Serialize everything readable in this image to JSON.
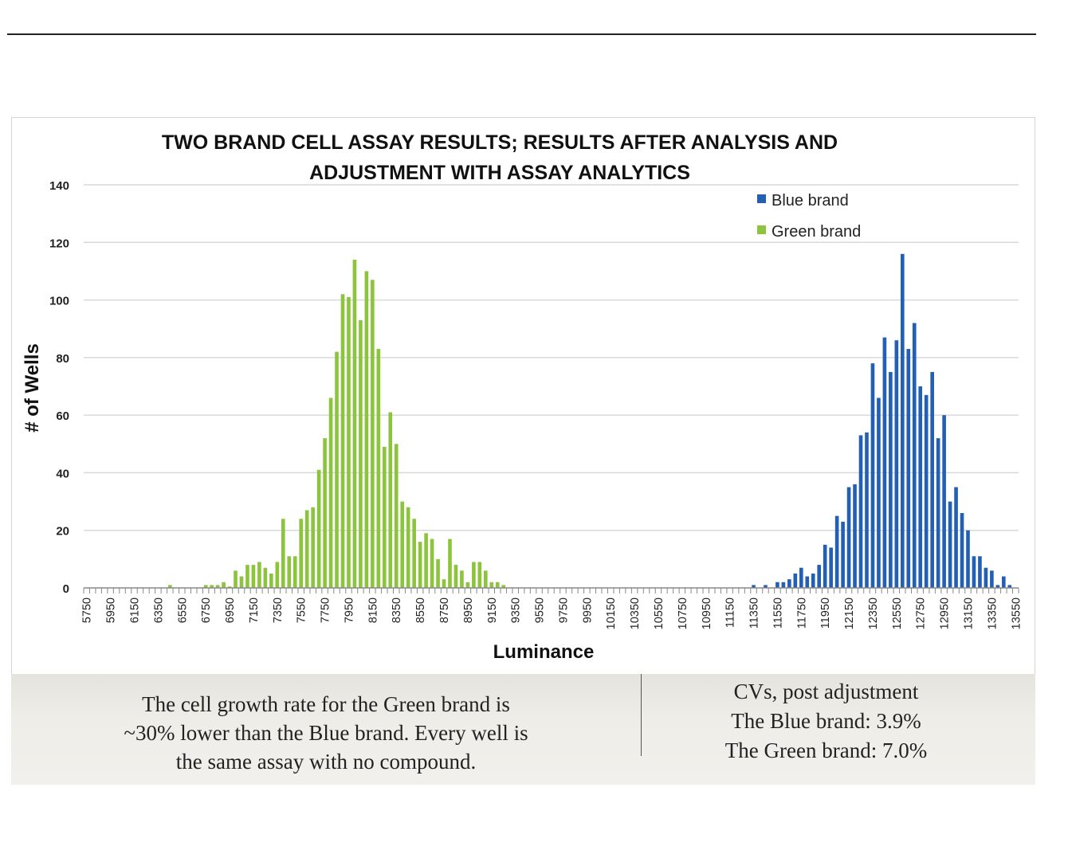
{
  "chart_data": {
    "type": "bar",
    "title_lines": [
      "TWO BRAND CELL ASSAY RESULTS; RESULTS AFTER ANALYSIS AND",
      "ADJUSTMENT WITH ASSAY ANALYTICS"
    ],
    "xlabel": "Luminance",
    "ylabel": "# of Wells",
    "ylim": [
      0,
      140
    ],
    "y_ticks": [
      0,
      20,
      40,
      60,
      80,
      100,
      120,
      140
    ],
    "x_start": 5750,
    "x_step": 50,
    "x_count": 157,
    "x_tick_labels": [
      "5750",
      "5950",
      "6150",
      "6350",
      "6550",
      "6750",
      "6950",
      "7150",
      "7350",
      "7550",
      "7750",
      "7950",
      "8150",
      "8350",
      "8550",
      "8750",
      "8950",
      "9150",
      "9350",
      "9550",
      "9750",
      "9950",
      "10150",
      "10350",
      "10550",
      "10750",
      "10950",
      "11150",
      "11350",
      "11550",
      "11750",
      "11950",
      "12150",
      "12350",
      "12550",
      "12750",
      "12950",
      "13150",
      "13350",
      "13550"
    ],
    "x_tick_every": 4,
    "grid": true,
    "legend_position": "top-right",
    "series": [
      {
        "name": "Blue brand",
        "color": "#2360b5",
        "points": [
          [
            11350,
            1
          ],
          [
            11450,
            1
          ],
          [
            11550,
            2
          ],
          [
            11600,
            2
          ],
          [
            11650,
            3
          ],
          [
            11700,
            5
          ],
          [
            11750,
            7
          ],
          [
            11800,
            4
          ],
          [
            11850,
            5
          ],
          [
            11900,
            8
          ],
          [
            11950,
            15
          ],
          [
            12000,
            14
          ],
          [
            12050,
            25
          ],
          [
            12100,
            23
          ],
          [
            12150,
            35
          ],
          [
            12200,
            36
          ],
          [
            12250,
            53
          ],
          [
            12300,
            54
          ],
          [
            12350,
            78
          ],
          [
            12400,
            66
          ],
          [
            12450,
            87
          ],
          [
            12500,
            75
          ],
          [
            12550,
            86
          ],
          [
            12600,
            116
          ],
          [
            12650,
            83
          ],
          [
            12700,
            92
          ],
          [
            12750,
            70
          ],
          [
            12800,
            67
          ],
          [
            12850,
            75
          ],
          [
            12900,
            52
          ],
          [
            12950,
            60
          ],
          [
            13000,
            30
          ],
          [
            13050,
            35
          ],
          [
            13100,
            26
          ],
          [
            13150,
            20
          ],
          [
            13200,
            11
          ],
          [
            13250,
            11
          ],
          [
            13300,
            7
          ],
          [
            13350,
            6
          ],
          [
            13400,
            1
          ],
          [
            13450,
            4
          ],
          [
            13500,
            1
          ]
        ]
      },
      {
        "name": "Green brand",
        "color": "#8cc43e",
        "points": [
          [
            6450,
            1
          ],
          [
            6750,
            1
          ],
          [
            6800,
            1
          ],
          [
            6850,
            1
          ],
          [
            6900,
            2
          ],
          [
            6950,
            0.5
          ],
          [
            7000,
            6
          ],
          [
            7050,
            4
          ],
          [
            7100,
            8
          ],
          [
            7150,
            8
          ],
          [
            7200,
            9
          ],
          [
            7250,
            7
          ],
          [
            7300,
            5
          ],
          [
            7350,
            9
          ],
          [
            7400,
            24
          ],
          [
            7450,
            11
          ],
          [
            7500,
            11
          ],
          [
            7550,
            24
          ],
          [
            7600,
            27
          ],
          [
            7650,
            28
          ],
          [
            7700,
            41
          ],
          [
            7750,
            52
          ],
          [
            7800,
            66
          ],
          [
            7850,
            82
          ],
          [
            7900,
            102
          ],
          [
            7950,
            101
          ],
          [
            8000,
            114
          ],
          [
            8050,
            93
          ],
          [
            8100,
            110
          ],
          [
            8150,
            107
          ],
          [
            8200,
            83
          ],
          [
            8250,
            49
          ],
          [
            8300,
            61
          ],
          [
            8350,
            50
          ],
          [
            8400,
            30
          ],
          [
            8450,
            28
          ],
          [
            8500,
            24
          ],
          [
            8550,
            16
          ],
          [
            8600,
            19
          ],
          [
            8650,
            17
          ],
          [
            8700,
            10
          ],
          [
            8750,
            3
          ],
          [
            8800,
            17
          ],
          [
            8850,
            8
          ],
          [
            8900,
            6
          ],
          [
            8950,
            2
          ],
          [
            9000,
            9
          ],
          [
            9050,
            9
          ],
          [
            9100,
            6
          ],
          [
            9150,
            2
          ],
          [
            9200,
            2
          ],
          [
            9250,
            1
          ]
        ]
      }
    ]
  },
  "caption": {
    "left_lines": [
      "The cell growth rate for the Green brand is",
      "~30% lower than the  Blue brand. Every well is",
      "the same assay with no compound."
    ],
    "right_lines": [
      "CVs, post adjustment",
      "The Blue brand: 3.9%",
      "The Green brand: 7.0%"
    ]
  }
}
